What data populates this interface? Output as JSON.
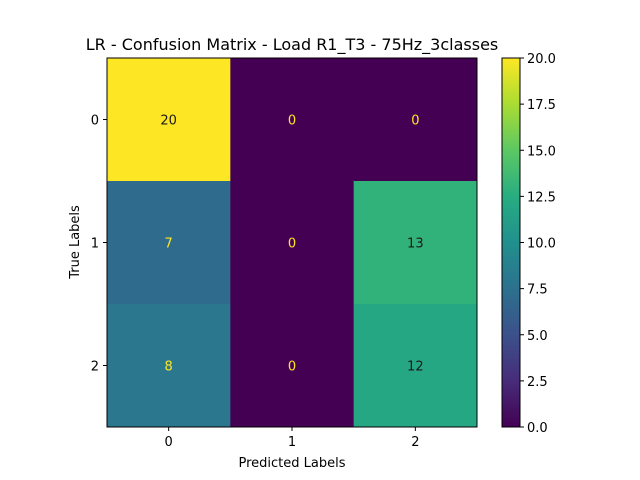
{
  "chart_data": {
    "type": "heatmap",
    "title": "LR - Confusion Matrix - Load R1_T3 - 75Hz_3classes",
    "xlabel": "Predicted Labels",
    "ylabel": "True Labels",
    "x_categories": [
      "0",
      "1",
      "2"
    ],
    "y_categories": [
      "0",
      "1",
      "2"
    ],
    "matrix": [
      [
        20,
        0,
        0
      ],
      [
        7,
        0,
        13
      ],
      [
        8,
        0,
        12
      ]
    ],
    "colorbar": {
      "min": 0.0,
      "max": 20.0,
      "ticks": [
        "0.0",
        "2.5",
        "5.0",
        "7.5",
        "10.0",
        "12.5",
        "15.0",
        "17.5",
        "20.0"
      ],
      "colormap": "viridis"
    },
    "grid": false
  }
}
